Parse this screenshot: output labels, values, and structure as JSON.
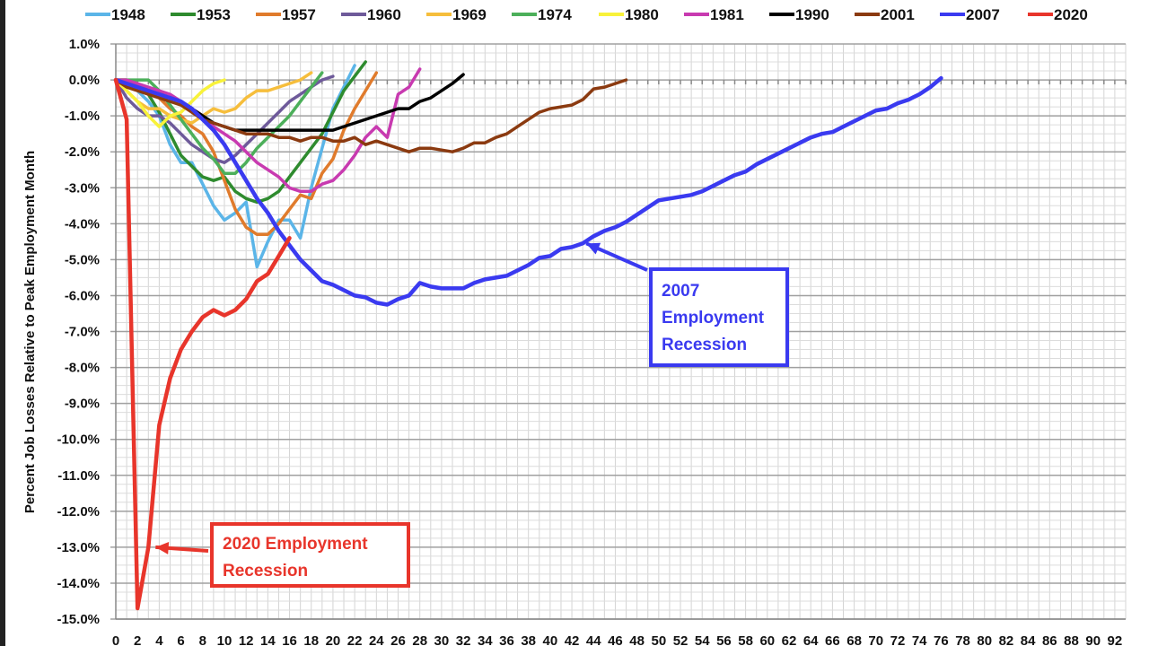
{
  "chart_data": {
    "type": "line",
    "title": "",
    "xlabel": "",
    "ylabel": "Percent Job Losses Relative to Peak Employment Month",
    "xlim": [
      0,
      93
    ],
    "ylim": [
      -15.0,
      1.0
    ],
    "xticks": [
      0,
      2,
      4,
      6,
      8,
      10,
      12,
      14,
      16,
      18,
      20,
      22,
      24,
      26,
      28,
      30,
      32,
      34,
      36,
      38,
      40,
      42,
      44,
      46,
      48,
      50,
      52,
      54,
      56,
      58,
      60,
      62,
      64,
      66,
      68,
      70,
      72,
      74,
      76,
      78,
      80,
      82,
      84,
      86,
      88,
      90,
      92
    ],
    "yticks": [
      1.0,
      0.0,
      -1.0,
      -2.0,
      -3.0,
      -4.0,
      -5.0,
      -6.0,
      -7.0,
      -8.0,
      -9.0,
      -10.0,
      -11.0,
      -12.0,
      -13.0,
      -14.0,
      -15.0
    ],
    "grid": true,
    "legend_position": "top",
    "series": [
      {
        "name": "1948",
        "color": "#5bb5e8",
        "values": [
          0,
          -0.1,
          -0.3,
          -0.6,
          -1.0,
          -1.8,
          -2.3,
          -2.3,
          -2.9,
          -3.5,
          -3.9,
          -3.7,
          -3.4,
          -5.2,
          -4.5,
          -3.9,
          -3.9,
          -4.4,
          -3.0,
          -1.9,
          -0.8,
          -0.2,
          0.4
        ]
      },
      {
        "name": "1953",
        "color": "#2e8b2e",
        "values": [
          0,
          0,
          -0.1,
          -0.4,
          -0.9,
          -1.5,
          -2.1,
          -2.4,
          -2.7,
          -2.8,
          -2.7,
          -3.1,
          -3.3,
          -3.4,
          -3.3,
          -3.1,
          -2.7,
          -2.3,
          -1.9,
          -1.5,
          -0.9,
          -0.3,
          0.1,
          0.5
        ]
      },
      {
        "name": "1957",
        "color": "#e07b2c",
        "values": [
          0,
          0,
          -0.1,
          -0.3,
          -0.5,
          -0.8,
          -1.0,
          -1.3,
          -1.5,
          -2.0,
          -2.8,
          -3.6,
          -4.1,
          -4.3,
          -4.3,
          -4.0,
          -3.6,
          -3.2,
          -3.3,
          -2.6,
          -2.2,
          -1.4,
          -0.8,
          -0.3,
          0.2
        ]
      },
      {
        "name": "1960",
        "color": "#6e5a9a",
        "values": [
          0,
          -0.5,
          -0.8,
          -1.0,
          -1.0,
          -1.2,
          -1.5,
          -1.8,
          -2.0,
          -2.2,
          -2.3,
          -2.1,
          -1.8,
          -1.5,
          -1.2,
          -0.9,
          -0.6,
          -0.4,
          -0.2,
          0.0,
          0.1
        ]
      },
      {
        "name": "1969",
        "color": "#f6be3c",
        "values": [
          0,
          -0.3,
          -0.6,
          -0.8,
          -0.8,
          -1.0,
          -1.1,
          -1.2,
          -1.0,
          -0.8,
          -0.9,
          -0.8,
          -0.5,
          -0.3,
          -0.3,
          -0.2,
          -0.1,
          0.0,
          0.2
        ]
      },
      {
        "name": "1974",
        "color": "#4caf5a",
        "values": [
          0,
          0,
          0,
          0,
          -0.3,
          -0.7,
          -1.1,
          -1.5,
          -1.9,
          -2.2,
          -2.6,
          -2.6,
          -2.3,
          -1.9,
          -1.6,
          -1.3,
          -1.0,
          -0.6,
          -0.2,
          0.2
        ]
      },
      {
        "name": "1980",
        "color": "#f8f23a",
        "values": [
          0,
          -0.3,
          -0.6,
          -1.0,
          -1.3,
          -1.0,
          -0.9,
          -0.6,
          -0.3,
          -0.1,
          0.0
        ]
      },
      {
        "name": "1981",
        "color": "#c83ab0",
        "values": [
          0,
          0,
          -0.1,
          -0.2,
          -0.3,
          -0.4,
          -0.6,
          -0.8,
          -1.0,
          -1.3,
          -1.5,
          -1.7,
          -2.0,
          -2.3,
          -2.5,
          -2.7,
          -3.0,
          -3.1,
          -3.1,
          -2.9,
          -2.8,
          -2.5,
          -2.1,
          -1.6,
          -1.3,
          -1.6,
          -0.4,
          -0.2,
          0.3
        ]
      },
      {
        "name": "1990",
        "color": "#000000",
        "values": [
          0,
          -0.1,
          -0.2,
          -0.3,
          -0.4,
          -0.5,
          -0.6,
          -0.8,
          -1.0,
          -1.2,
          -1.3,
          -1.4,
          -1.4,
          -1.4,
          -1.4,
          -1.4,
          -1.4,
          -1.4,
          -1.4,
          -1.4,
          -1.4,
          -1.3,
          -1.2,
          -1.1,
          -1.0,
          -0.9,
          -0.8,
          -0.8,
          -0.6,
          -0.5,
          -0.3,
          -0.1,
          0.15
        ]
      },
      {
        "name": "2001",
        "color": "#8b3a10",
        "values": [
          0,
          -0.2,
          -0.3,
          -0.4,
          -0.5,
          -0.6,
          -0.7,
          -0.9,
          -1.1,
          -1.2,
          -1.3,
          -1.4,
          -1.5,
          -1.5,
          -1.5,
          -1.6,
          -1.6,
          -1.7,
          -1.6,
          -1.6,
          -1.7,
          -1.7,
          -1.6,
          -1.8,
          -1.7,
          -1.8,
          -1.9,
          -2.0,
          -1.9,
          -1.9,
          -1.95,
          -2.0,
          -1.9,
          -1.75,
          -1.75,
          -1.6,
          -1.5,
          -1.3,
          -1.1,
          -0.9,
          -0.8,
          -0.75,
          -0.7,
          -0.55,
          -0.25,
          -0.2,
          -0.1,
          0.0
        ]
      },
      {
        "name": "2007",
        "color": "#3a3af0",
        "values": [
          0,
          -0.1,
          -0.2,
          -0.3,
          -0.4,
          -0.5,
          -0.6,
          -0.8,
          -1.1,
          -1.4,
          -1.8,
          -2.3,
          -2.8,
          -3.3,
          -3.7,
          -4.2,
          -4.6,
          -5.0,
          -5.3,
          -5.6,
          -5.7,
          -5.85,
          -6.0,
          -6.05,
          -6.2,
          -6.25,
          -6.1,
          -6.0,
          -5.65,
          -5.75,
          -5.8,
          -5.8,
          -5.8,
          -5.65,
          -5.55,
          -5.5,
          -5.45,
          -5.3,
          -5.15,
          -4.95,
          -4.9,
          -4.7,
          -4.65,
          -4.55,
          -4.35,
          -4.2,
          -4.1,
          -3.95,
          -3.75,
          -3.55,
          -3.35,
          -3.3,
          -3.25,
          -3.2,
          -3.1,
          -2.95,
          -2.8,
          -2.65,
          -2.55,
          -2.35,
          -2.2,
          -2.05,
          -1.9,
          -1.75,
          -1.6,
          -1.5,
          -1.45,
          -1.3,
          -1.15,
          -1.0,
          -0.85,
          -0.8,
          -0.65,
          -0.55,
          -0.4,
          -0.2,
          0.05
        ]
      },
      {
        "name": "2020",
        "color": "#e8352b",
        "values": [
          0,
          -1.1,
          -14.7,
          -13.0,
          -9.6,
          -8.3,
          -7.5,
          -7.0,
          -6.6,
          -6.4,
          -6.55,
          -6.4,
          -6.1,
          -5.6,
          -5.4,
          -4.9,
          -4.4
        ]
      }
    ],
    "annotations": [
      {
        "text_lines": [
          "2007",
          "Employment",
          "Recession"
        ],
        "series": "2007",
        "points_to": [
          43,
          -4.6
        ]
      },
      {
        "text_lines": [
          "2020 Employment",
          "Recession"
        ],
        "series": "2020",
        "points_to": [
          3,
          -13.0
        ]
      }
    ]
  }
}
